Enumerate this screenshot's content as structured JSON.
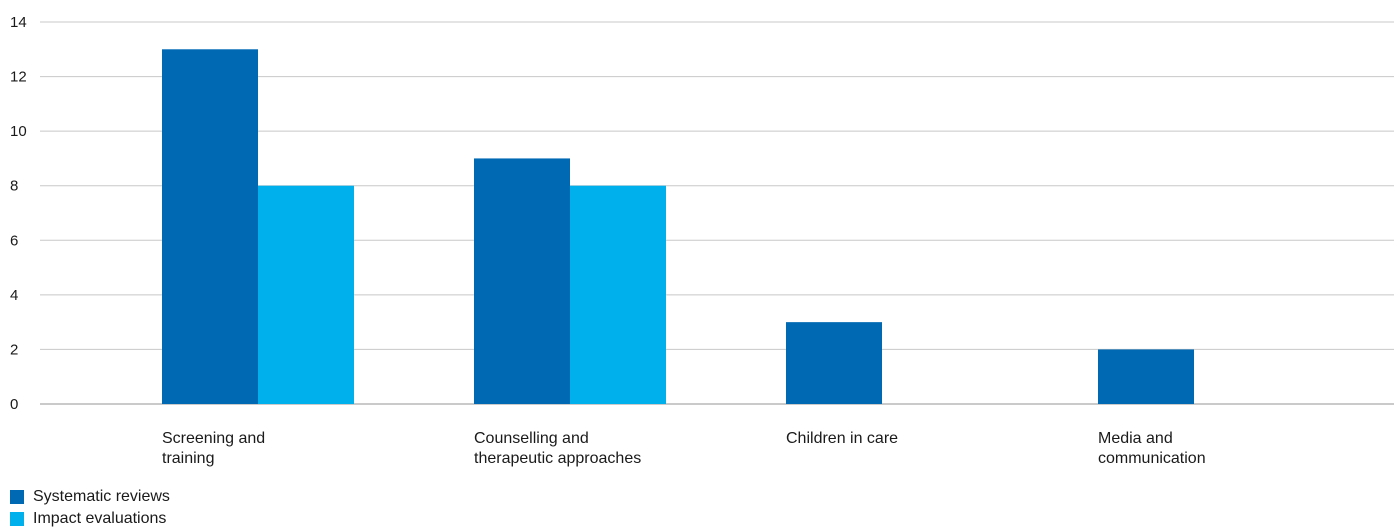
{
  "chart_data": {
    "type": "bar",
    "categories": [
      [
        "Screening and",
        "training"
      ],
      [
        "Counselling and",
        "therapeutic approaches"
      ],
      [
        "Children in care"
      ],
      [
        "Media and",
        "communication"
      ]
    ],
    "series": [
      {
        "name": "Systematic reviews",
        "values": [
          13,
          9,
          3,
          2
        ],
        "color": "#0069b4"
      },
      {
        "name": "Impact evaluations",
        "values": [
          8,
          8,
          0,
          0
        ],
        "color": "#00b0ec"
      }
    ],
    "yticks": [
      "0",
      "2",
      "4",
      "6",
      "8",
      "10",
      "12",
      "14"
    ],
    "ylim": [
      0,
      14
    ],
    "grid": true,
    "legend_position": "bottom-left",
    "title": "",
    "xlabel": "",
    "ylabel": ""
  }
}
